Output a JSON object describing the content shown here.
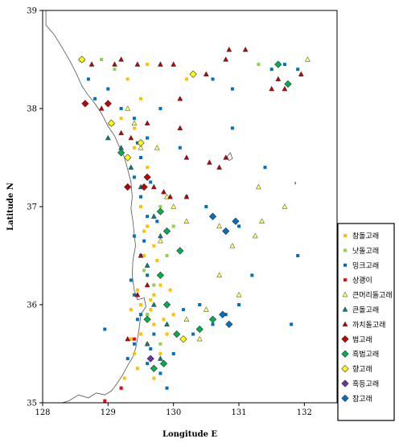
{
  "chart_data": {
    "type": "scatter",
    "title": "",
    "xlabel": "Longitude  E",
    "ylabel": "Latitude  N",
    "xlim": [
      128,
      132.5
    ],
    "ylim": [
      35,
      39
    ],
    "xticks": [
      "128",
      "129",
      "130",
      "131",
      "132"
    ],
    "xtick_values": [
      128,
      129,
      130,
      131,
      132
    ],
    "yticks": [
      "35",
      "36",
      "37",
      "38",
      "39"
    ],
    "ytick_values": [
      35,
      36,
      37,
      38,
      39
    ],
    "grid": false,
    "legend_position": "right",
    "series": [
      {
        "name": "참돌고래",
        "marker": "square",
        "color": "#FFC000",
        "points": [
          [
            129.3,
            38.3
          ],
          [
            129.5,
            38.1
          ],
          [
            129.2,
            37.9
          ],
          [
            129.4,
            37.6
          ],
          [
            129.6,
            37.4
          ],
          [
            129.5,
            37.0
          ],
          [
            129.6,
            36.8
          ],
          [
            129.7,
            36.6
          ],
          [
            129.55,
            36.5
          ],
          [
            129.6,
            36.3
          ],
          [
            129.7,
            36.1
          ],
          [
            129.5,
            36.0
          ],
          [
            129.6,
            35.9
          ],
          [
            129.7,
            35.8
          ],
          [
            129.5,
            35.7
          ],
          [
            129.6,
            35.6
          ],
          [
            129.4,
            35.5
          ],
          [
            129.8,
            35.5
          ],
          [
            129.65,
            35.95
          ],
          [
            129.45,
            36.15
          ],
          [
            129.75,
            36.45
          ],
          [
            129.55,
            36.75
          ],
          [
            129.35,
            35.65
          ],
          [
            129.9,
            35.7
          ],
          [
            130.0,
            35.9
          ],
          [
            129.45,
            35.35
          ],
          [
            129.25,
            35.25
          ],
          [
            129.7,
            35.25
          ],
          [
            129.6,
            38.45
          ],
          [
            130.2,
            38.3
          ],
          [
            129.4,
            37.8
          ],
          [
            129.8,
            36.2
          ],
          [
            129.85,
            35.85
          ],
          [
            129.35,
            35.95
          ],
          [
            129.65,
            36.05
          ],
          [
            129.95,
            36.15
          ]
        ]
      },
      {
        "name": "낫돌고래",
        "marker": "square",
        "color": "#92D050",
        "points": [
          [
            128.9,
            38.5
          ],
          [
            129.1,
            38.4
          ],
          [
            129.8,
            37.0
          ],
          [
            130.0,
            36.8
          ],
          [
            129.9,
            36.5
          ],
          [
            129.7,
            36.2
          ],
          [
            129.6,
            35.9
          ],
          [
            131.3,
            38.45
          ],
          [
            129.8,
            35.6
          ],
          [
            129.55,
            36.35
          ]
        ]
      },
      {
        "name": "밍크고래",
        "marker": "square",
        "color": "#0070C0",
        "points": [
          [
            128.7,
            38.3
          ],
          [
            128.8,
            38.1
          ],
          [
            129.0,
            38.2
          ],
          [
            129.2,
            38.0
          ],
          [
            129.4,
            37.9
          ],
          [
            129.6,
            37.7
          ],
          [
            129.5,
            37.5
          ],
          [
            129.4,
            37.3
          ],
          [
            129.5,
            37.1
          ],
          [
            129.6,
            36.9
          ],
          [
            129.4,
            36.7
          ],
          [
            129.5,
            36.5
          ],
          [
            129.6,
            36.3
          ],
          [
            129.4,
            36.1
          ],
          [
            129.5,
            35.9
          ],
          [
            129.7,
            35.7
          ],
          [
            129.4,
            35.6
          ],
          [
            129.3,
            35.45
          ],
          [
            129.6,
            35.4
          ],
          [
            129.8,
            35.3
          ],
          [
            130.0,
            35.5
          ],
          [
            130.3,
            35.7
          ],
          [
            130.6,
            35.8
          ],
          [
            130.8,
            35.9
          ],
          [
            131.0,
            36.0
          ],
          [
            131.2,
            36.3
          ],
          [
            130.2,
            37.1
          ],
          [
            130.5,
            37.0
          ],
          [
            131.0,
            36.8
          ],
          [
            131.4,
            37.4
          ],
          [
            131.5,
            38.4
          ],
          [
            131.7,
            38.45
          ],
          [
            131.9,
            38.4
          ],
          [
            130.6,
            38.3
          ],
          [
            130.9,
            38.2
          ],
          [
            129.8,
            38.0
          ],
          [
            130.1,
            37.6
          ],
          [
            130.9,
            37.8
          ],
          [
            129.2,
            35.15
          ],
          [
            129.9,
            35.15
          ],
          [
            130.4,
            36.0
          ],
          [
            131.9,
            36.5
          ],
          [
            131.8,
            35.8
          ],
          [
            129.65,
            37.25
          ],
          [
            129.55,
            36.65
          ],
          [
            129.75,
            36.85
          ],
          [
            129.45,
            35.85
          ],
          [
            129.65,
            35.55
          ],
          [
            130.15,
            35.95
          ],
          [
            129.35,
            36.25
          ],
          [
            128.95,
            35.75
          ],
          [
            129.45,
            37.65
          ]
        ]
      },
      {
        "name": "상괭이",
        "marker": "square",
        "color": "#FF0000",
        "points": [
          [
            128.95,
            35.02
          ],
          [
            129.2,
            35.15
          ],
          [
            129.4,
            35.65
          ]
        ]
      },
      {
        "name": "큰머리돌고래",
        "marker": "triangle-up",
        "color": "#FFFF66",
        "points": [
          [
            129.3,
            38.0
          ],
          [
            129.4,
            37.85
          ],
          [
            129.5,
            37.6
          ],
          [
            129.75,
            37.6
          ],
          [
            130.0,
            37.0
          ],
          [
            130.2,
            36.85
          ],
          [
            130.7,
            36.8
          ],
          [
            130.9,
            36.6
          ],
          [
            131.3,
            37.2
          ],
          [
            131.35,
            36.85
          ],
          [
            131.7,
            37.0
          ],
          [
            131.25,
            36.7
          ],
          [
            130.7,
            36.3
          ],
          [
            130.5,
            35.95
          ],
          [
            130.4,
            35.65
          ],
          [
            130.2,
            35.85
          ],
          [
            131.0,
            36.1
          ],
          [
            132.05,
            38.5
          ],
          [
            129.9,
            37.1
          ],
          [
            129.8,
            36.65
          ]
        ]
      },
      {
        "name": "큰돌고래",
        "marker": "triangle-up",
        "color": "#008080",
        "points": [
          [
            129.0,
            37.7
          ],
          [
            129.2,
            37.6
          ],
          [
            129.35,
            37.4
          ],
          [
            129.5,
            37.2
          ],
          [
            129.7,
            36.9
          ],
          [
            129.8,
            36.7
          ],
          [
            129.6,
            36.4
          ],
          [
            129.7,
            36.0
          ],
          [
            129.9,
            35.8
          ],
          [
            129.6,
            35.6
          ],
          [
            129.8,
            35.45
          ]
        ]
      },
      {
        "name": "까치돌고래",
        "marker": "triangle-up",
        "color": "#C00000",
        "points": [
          [
            128.6,
            38.5
          ],
          [
            128.75,
            38.45
          ],
          [
            129.1,
            38.45
          ],
          [
            129.2,
            38.5
          ],
          [
            129.45,
            38.45
          ],
          [
            129.8,
            38.45
          ],
          [
            130.0,
            38.45
          ],
          [
            130.5,
            38.35
          ],
          [
            130.8,
            38.5
          ],
          [
            130.85,
            38.6
          ],
          [
            131.1,
            38.6
          ],
          [
            131.6,
            38.3
          ],
          [
            131.7,
            38.2
          ],
          [
            131.95,
            38.35
          ],
          [
            131.5,
            38.2
          ],
          [
            128.9,
            38.0
          ],
          [
            129.05,
            37.85
          ],
          [
            129.2,
            37.75
          ],
          [
            129.35,
            37.7
          ],
          [
            129.6,
            37.85
          ],
          [
            130.1,
            38.1
          ],
          [
            130.1,
            37.8
          ],
          [
            130.2,
            37.5
          ],
          [
            130.7,
            37.4
          ],
          [
            130.8,
            37.5
          ],
          [
            129.7,
            37.2
          ],
          [
            129.85,
            37.15
          ],
          [
            129.95,
            37.1
          ],
          [
            129.5,
            36.5
          ],
          [
            129.6,
            36.2
          ],
          [
            129.3,
            35.65
          ],
          [
            129.45,
            36.1
          ],
          [
            130.2,
            37.1
          ],
          [
            130.55,
            37.45
          ]
        ]
      },
      {
        "name": "범고래",
        "marker": "diamond",
        "color": "#C00000",
        "points": [
          [
            128.65,
            38.05
          ],
          [
            129.0,
            38.05
          ],
          [
            129.6,
            37.3
          ],
          [
            129.3,
            37.2
          ],
          [
            129.55,
            37.2
          ]
        ]
      },
      {
        "name": "흑범고래",
        "marker": "diamond",
        "color": "#00B050",
        "points": [
          [
            131.6,
            38.45
          ],
          [
            131.75,
            38.25
          ],
          [
            129.2,
            37.55
          ],
          [
            129.8,
            36.95
          ],
          [
            129.9,
            36.75
          ],
          [
            130.1,
            36.55
          ],
          [
            129.8,
            36.3
          ],
          [
            129.9,
            36.0
          ],
          [
            130.05,
            35.7
          ],
          [
            130.4,
            35.75
          ],
          [
            130.6,
            35.85
          ],
          [
            129.85,
            35.4
          ],
          [
            129.7,
            35.35
          ],
          [
            129.6,
            35.85
          ]
        ]
      },
      {
        "name": "향고래",
        "marker": "diamond",
        "color": "#FFFF00",
        "points": [
          [
            128.6,
            38.5
          ],
          [
            130.3,
            38.35
          ],
          [
            129.05,
            37.85
          ],
          [
            129.5,
            37.65
          ],
          [
            129.3,
            37.5
          ],
          [
            130.15,
            35.65
          ]
        ]
      },
      {
        "name": "혹등고래",
        "marker": "diamond",
        "color": "#7030A0",
        "points": [
          [
            129.65,
            35.45
          ]
        ]
      },
      {
        "name": "참고래",
        "marker": "diamond",
        "color": "#0070C0",
        "points": [
          [
            130.6,
            36.9
          ],
          [
            130.8,
            36.75
          ],
          [
            130.95,
            36.85
          ],
          [
            130.75,
            35.9
          ],
          [
            130.85,
            35.8
          ]
        ]
      }
    ],
    "islands": [
      {
        "name": "",
        "outline": [
          [
            130.87,
            37.55
          ],
          [
            130.9,
            37.49
          ],
          [
            130.85,
            37.47
          ],
          [
            130.82,
            37.51
          ]
        ]
      },
      {
        "name": "",
        "outline": [
          [
            131.86,
            37.25
          ],
          [
            131.87,
            37.24
          ],
          [
            131.86,
            37.23
          ]
        ]
      }
    ],
    "coastline": [
      [
        128.05,
        38.85
      ],
      [
        128.18,
        38.75
      ],
      [
        128.3,
        38.62
      ],
      [
        128.42,
        38.48
      ],
      [
        128.52,
        38.35
      ],
      [
        128.6,
        38.23
      ],
      [
        128.68,
        38.15
      ],
      [
        128.8,
        38.05
      ],
      [
        128.9,
        37.95
      ],
      [
        129.0,
        37.82
      ],
      [
        129.1,
        37.72
      ],
      [
        129.18,
        37.6
      ],
      [
        129.25,
        37.5
      ],
      [
        129.3,
        37.38
      ],
      [
        129.35,
        37.25
      ],
      [
        129.37,
        37.1
      ],
      [
        129.35,
        36.98
      ],
      [
        129.38,
        36.85
      ],
      [
        129.4,
        36.72
      ],
      [
        129.42,
        36.6
      ],
      [
        129.38,
        36.45
      ],
      [
        129.37,
        36.3
      ],
      [
        129.4,
        36.15
      ],
      [
        129.45,
        36.05
      ],
      [
        129.55,
        36.07
      ],
      [
        129.58,
        35.98
      ],
      [
        129.5,
        35.9
      ],
      [
        129.48,
        35.78
      ],
      [
        129.45,
        35.65
      ],
      [
        129.42,
        35.55
      ],
      [
        129.38,
        35.47
      ],
      [
        129.3,
        35.38
      ],
      [
        129.22,
        35.28
      ],
      [
        129.12,
        35.18
      ],
      [
        129.05,
        35.12
      ],
      [
        128.95,
        35.08
      ],
      [
        128.82,
        35.1
      ],
      [
        128.7,
        35.05
      ],
      [
        128.55,
        35.08
      ],
      [
        128.4,
        35.02
      ],
      [
        128.3,
        35.0
      ]
    ]
  }
}
